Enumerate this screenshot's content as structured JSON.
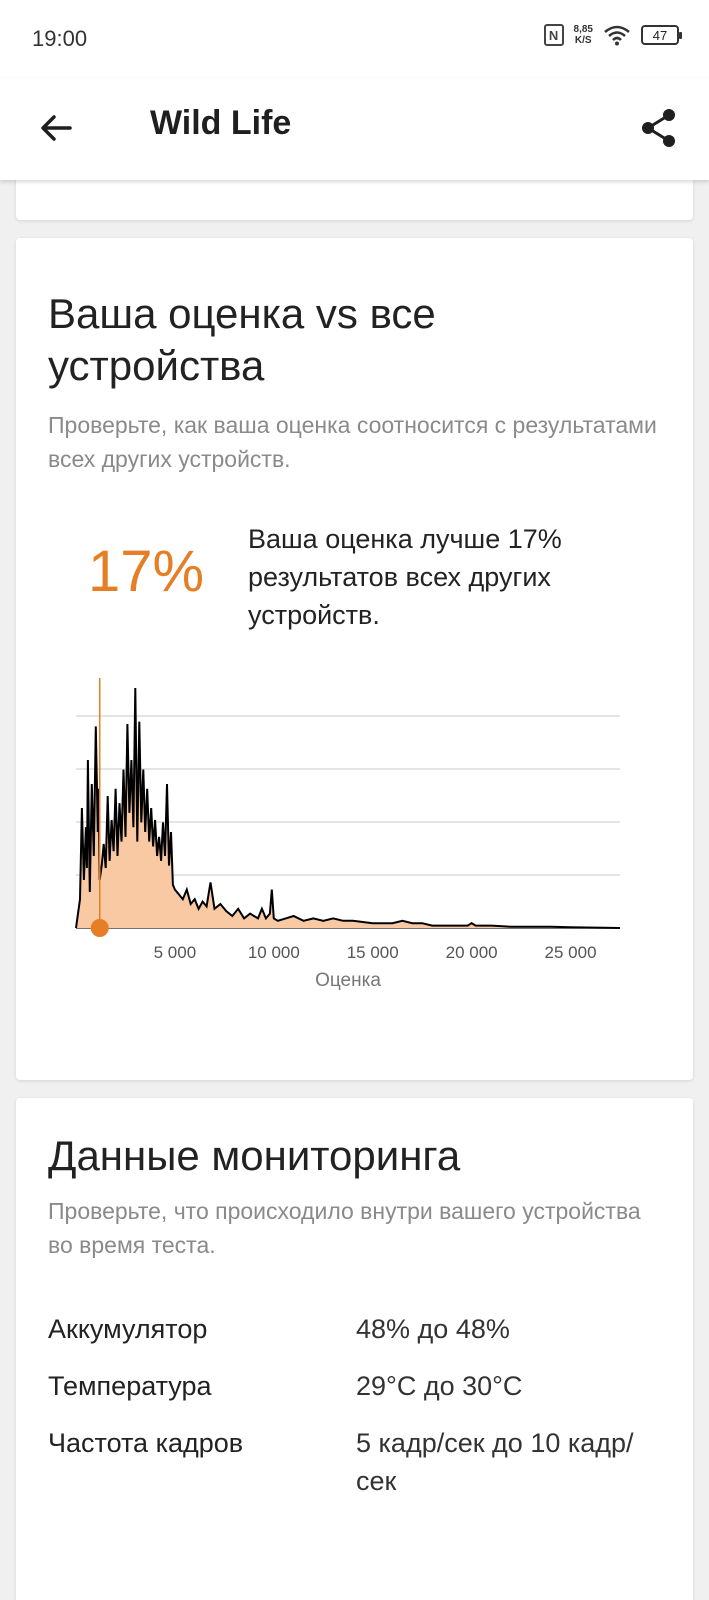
{
  "status_bar": {
    "time": "19:00",
    "nfc_label": "N",
    "net_speed_value": "8,85",
    "net_speed_unit": "K/S",
    "battery": "47"
  },
  "app_bar": {
    "back_icon": "arrow-left-icon",
    "title": "Wild Life",
    "share_icon": "share-icon"
  },
  "score_card": {
    "title": "Ваша оценка vs все устройства",
    "subtitle": "Проверьте, как ваша оценка соотносится с результатами всех других устройств.",
    "percent": "17%",
    "percent_description": "Ваша оценка лучше 17% результатов всех других устройств."
  },
  "chart_data": {
    "type": "area",
    "xlabel": "Оценка",
    "ylabel": "",
    "x_tick_labels": [
      "5 000",
      "10 000",
      "15 000",
      "20 000",
      "25 000"
    ],
    "x_ticks": [
      5000,
      10000,
      15000,
      20000,
      25000
    ],
    "xlim": [
      0,
      27500
    ],
    "ylim": [
      0,
      100
    ],
    "grid": true,
    "fill_color": "#f9c9a4",
    "line_color": "#000000",
    "marker_color": "#e57e25",
    "user_score": 1200,
    "series": [
      {
        "x": [
          0,
          200,
          300,
          400,
          500,
          550,
          600,
          700,
          800,
          900,
          1000,
          1100,
          1150,
          1200,
          1300,
          1400,
          1500,
          1600,
          1700,
          1800,
          1900,
          2000,
          2100,
          2200,
          2300,
          2400,
          2500,
          2600,
          2700,
          2800,
          2900,
          3000,
          3100,
          3200,
          3300,
          3400,
          3500,
          3600,
          3700,
          3800,
          3900,
          4000,
          4100,
          4200,
          4300,
          4400,
          4500,
          4600,
          4700,
          4800,
          4900,
          5000,
          5200,
          5400,
          5600,
          5800,
          6000,
          6200,
          6400,
          6600,
          6800,
          7000,
          7300,
          7600,
          7900,
          8200,
          8500,
          8800,
          9000,
          9200,
          9400,
          9600,
          9800,
          9900,
          10000,
          10200,
          10600,
          11000,
          11500,
          12000,
          12500,
          13000,
          13500,
          14000,
          15000,
          16000,
          16500,
          17000,
          17500,
          18000,
          19000,
          19800,
          20000,
          20200,
          21000,
          22000,
          23000,
          24000,
          25000,
          27500
        ],
        "y": [
          0,
          12,
          50,
          20,
          42,
          25,
          70,
          15,
          60,
          30,
          84,
          40,
          58,
          20,
          26,
          35,
          25,
          55,
          28,
          45,
          32,
          58,
          30,
          52,
          36,
          66,
          38,
          85,
          48,
          70,
          42,
          100,
          36,
          86,
          44,
          66,
          40,
          58,
          36,
          50,
          34,
          45,
          30,
          38,
          28,
          44,
          30,
          60,
          26,
          40,
          18,
          16,
          14,
          12,
          16,
          10,
          12,
          8,
          11,
          9,
          19,
          8,
          10,
          7,
          5,
          8,
          4,
          6,
          5,
          4,
          8,
          4,
          6,
          16,
          4,
          3,
          4,
          5,
          3,
          4,
          3,
          4,
          3,
          3,
          2,
          2,
          3,
          2,
          2,
          1,
          1,
          1,
          2,
          1,
          1,
          0.5,
          0.5,
          0.5,
          0.3,
          0
        ]
      }
    ]
  },
  "monitor_card": {
    "title": "Данные мониторинга",
    "subtitle": "Проверьте, что происходило внутри вашего устройства во время теста.",
    "rows": [
      {
        "label": "Аккумулятор",
        "value": "48% до 48%"
      },
      {
        "label": "Температура",
        "value": "29°C до 30°C"
      },
      {
        "label": "Частота кадров",
        "value": "5 кадр/сек до 10 кадр/сек"
      }
    ]
  }
}
